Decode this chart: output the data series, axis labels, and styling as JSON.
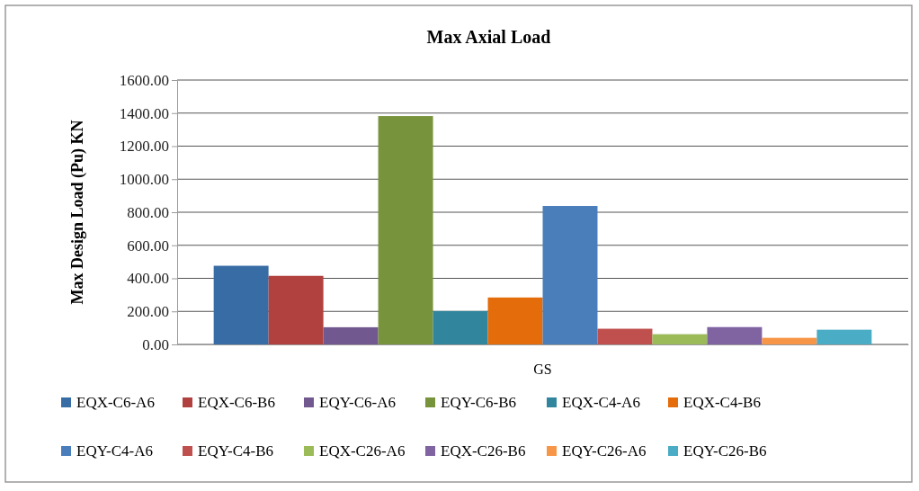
{
  "chart_data": {
    "type": "bar",
    "title": "Max Axial Load",
    "ylabel": "Max Design Load (Pu) KN",
    "xlabel": "GS",
    "categories": [
      null
    ],
    "series": [
      {
        "name": "EQX-C6-A6",
        "color": "#386ca4",
        "values": [
          476
        ]
      },
      {
        "name": "EQX-C6-B6",
        "color": "#b0413e",
        "values": [
          415
        ]
      },
      {
        "name": "EQY-C6-A6",
        "color": "#71588f",
        "values": [
          104
        ]
      },
      {
        "name": "EQY-C6-B6",
        "color": "#77933c",
        "values": [
          1382
        ]
      },
      {
        "name": "EQX-C4-A6",
        "color": "#31859c",
        "values": [
          202
        ]
      },
      {
        "name": "EQX-C4-B6",
        "color": "#e46c0a",
        "values": [
          284
        ]
      },
      {
        "name": "EQY-C4-A6",
        "color": "#4a7ebb",
        "values": [
          838
        ]
      },
      {
        "name": "EQY-C4-B6",
        "color": "#c0504d",
        "values": [
          95
        ]
      },
      {
        "name": "EQX-C26-A6",
        "color": "#9bbb59",
        "values": [
          62
        ]
      },
      {
        "name": "EQX-C26-B6",
        "color": "#8064a2",
        "values": [
          105
        ]
      },
      {
        "name": "EQY-C26-A6",
        "color": "#f79646",
        "values": [
          40
        ]
      },
      {
        "name": "EQY-C26-B6",
        "color": "#4bacc6",
        "values": [
          89
        ]
      }
    ],
    "ylim": [
      0,
      1600
    ],
    "yticks": [
      {
        "value": 0,
        "label": "0.00"
      },
      {
        "value": 200,
        "label": "200.00"
      },
      {
        "value": 400,
        "label": "400.00"
      },
      {
        "value": 600,
        "label": "600.00"
      },
      {
        "value": 800,
        "label": "800.00"
      },
      {
        "value": 1000,
        "label": "1000.00"
      },
      {
        "value": 1200,
        "label": "1200.00"
      },
      {
        "value": 1400,
        "label": "1400.00"
      },
      {
        "value": 1600,
        "label": "1600.00"
      }
    ],
    "grid": "y",
    "legend": "bottom"
  }
}
